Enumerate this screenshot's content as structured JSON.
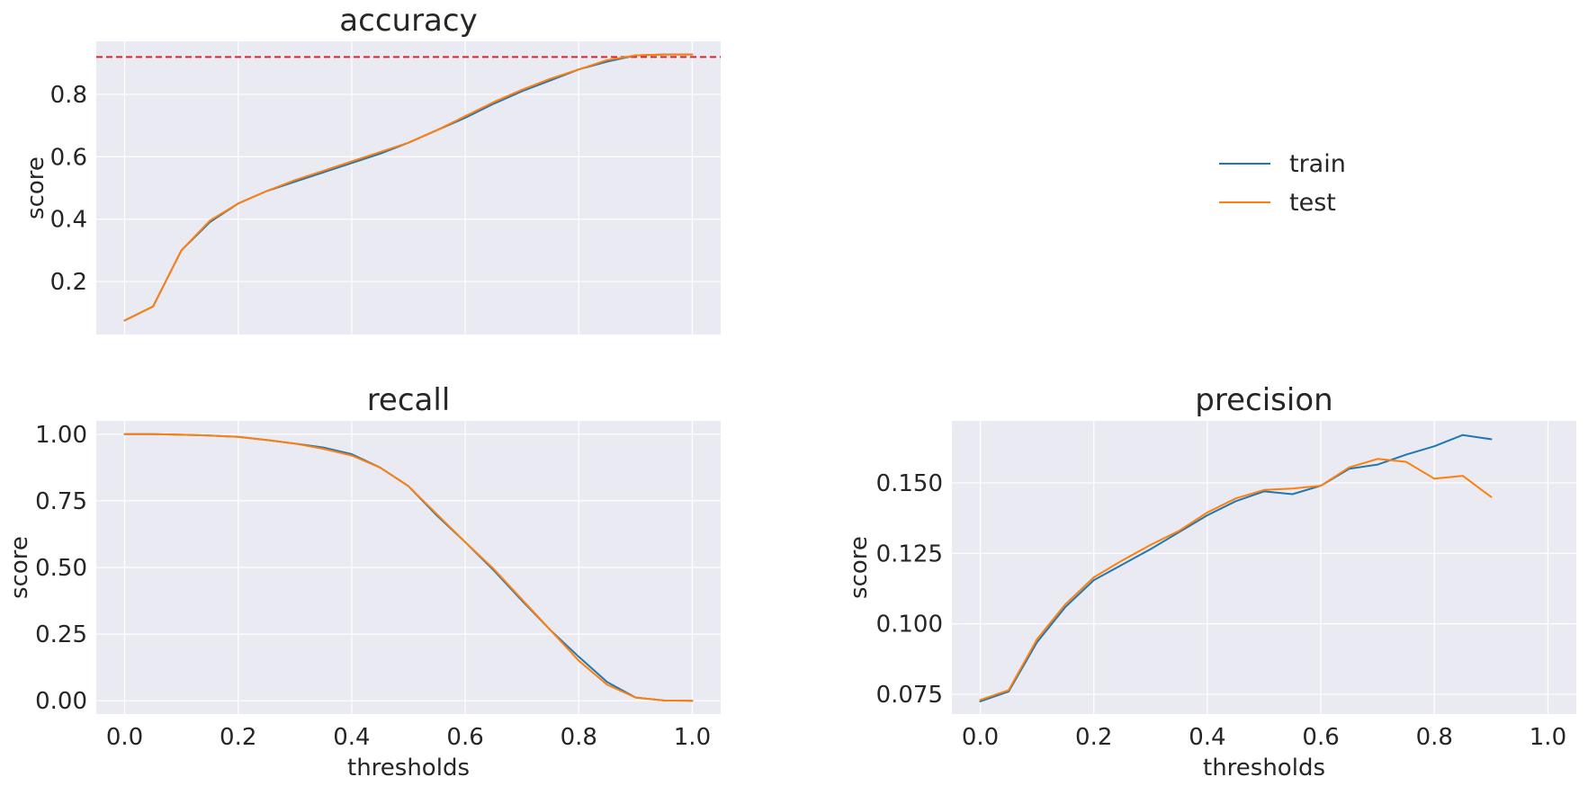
{
  "legend": {
    "entries": [
      {
        "label": "train",
        "color": "#1f77b4"
      },
      {
        "label": "test",
        "color": "#ff7f0e"
      }
    ]
  },
  "chart_data": [
    {
      "type": "line",
      "title": "accuracy",
      "xlabel": "",
      "ylabel": "score",
      "xlim": [
        -0.05,
        1.05
      ],
      "ylim": [
        0.03,
        0.97
      ],
      "xticks": [
        0.0,
        0.2,
        0.4,
        0.6,
        0.8,
        1.0
      ],
      "xtick_labels": [
        "",
        "",
        "",
        "",
        "",
        ""
      ],
      "yticks": [
        0.2,
        0.4,
        0.6,
        0.8
      ],
      "ytick_labels": [
        "0.2",
        "0.4",
        "0.6",
        "0.8"
      ],
      "grid": true,
      "reference_line": {
        "y": 0.92,
        "color": "#d62728",
        "style": "dashed"
      },
      "x": [
        0.0,
        0.05,
        0.1,
        0.15,
        0.2,
        0.25,
        0.3,
        0.35,
        0.4,
        0.45,
        0.5,
        0.55,
        0.6,
        0.65,
        0.7,
        0.75,
        0.8,
        0.85,
        0.9,
        0.95,
        1.0
      ],
      "series": [
        {
          "name": "train",
          "color": "#1f77b4",
          "values": [
            0.075,
            0.12,
            0.3,
            0.39,
            0.45,
            0.49,
            0.52,
            0.55,
            0.58,
            0.61,
            0.645,
            0.685,
            0.725,
            0.77,
            0.81,
            0.845,
            0.88,
            0.905,
            0.925,
            0.928,
            0.928
          ]
        },
        {
          "name": "test",
          "color": "#ff7f0e",
          "values": [
            0.075,
            0.12,
            0.3,
            0.395,
            0.45,
            0.49,
            0.525,
            0.555,
            0.585,
            0.615,
            0.645,
            0.685,
            0.73,
            0.775,
            0.815,
            0.85,
            0.88,
            0.91,
            0.925,
            0.928,
            0.928
          ]
        }
      ]
    },
    {
      "type": "line",
      "title": "recall",
      "xlabel": "thresholds",
      "ylabel": "score",
      "xlim": [
        -0.05,
        1.05
      ],
      "ylim": [
        -0.05,
        1.05
      ],
      "xticks": [
        0.0,
        0.2,
        0.4,
        0.6,
        0.8,
        1.0
      ],
      "xtick_labels": [
        "0.0",
        "0.2",
        "0.4",
        "0.6",
        "0.8",
        "1.0"
      ],
      "yticks": [
        0.0,
        0.25,
        0.5,
        0.75,
        1.0
      ],
      "ytick_labels": [
        "0.00",
        "0.25",
        "0.50",
        "0.75",
        "1.00"
      ],
      "grid": true,
      "x": [
        0.0,
        0.05,
        0.1,
        0.15,
        0.2,
        0.25,
        0.3,
        0.35,
        0.4,
        0.45,
        0.5,
        0.55,
        0.6,
        0.65,
        0.7,
        0.75,
        0.8,
        0.85,
        0.9,
        0.95,
        1.0
      ],
      "series": [
        {
          "name": "train",
          "color": "#1f77b4",
          "values": [
            1.0,
            1.0,
            0.998,
            0.995,
            0.99,
            0.978,
            0.965,
            0.95,
            0.925,
            0.875,
            0.805,
            0.695,
            0.595,
            0.49,
            0.375,
            0.265,
            0.165,
            0.07,
            0.012,
            0.001,
            0.0
          ]
        },
        {
          "name": "test",
          "color": "#ff7f0e",
          "values": [
            1.0,
            1.0,
            0.998,
            0.995,
            0.99,
            0.978,
            0.965,
            0.945,
            0.92,
            0.875,
            0.805,
            0.7,
            0.595,
            0.495,
            0.38,
            0.265,
            0.15,
            0.06,
            0.012,
            0.001,
            0.0
          ]
        }
      ]
    },
    {
      "type": "line",
      "title": "precision",
      "xlabel": "thresholds",
      "ylabel": "score",
      "xlim": [
        -0.05,
        1.05
      ],
      "ylim": [
        0.068,
        0.172
      ],
      "xticks": [
        0.0,
        0.2,
        0.4,
        0.6,
        0.8,
        1.0
      ],
      "xtick_labels": [
        "0.0",
        "0.2",
        "0.4",
        "0.6",
        "0.8",
        "1.0"
      ],
      "yticks": [
        0.075,
        0.1,
        0.125,
        0.15
      ],
      "ytick_labels": [
        "0.075",
        "0.100",
        "0.125",
        "0.150"
      ],
      "grid": true,
      "x": [
        0.0,
        0.05,
        0.1,
        0.15,
        0.2,
        0.25,
        0.3,
        0.35,
        0.4,
        0.45,
        0.5,
        0.55,
        0.6,
        0.65,
        0.7,
        0.75,
        0.8,
        0.85,
        0.9
      ],
      "series": [
        {
          "name": "train",
          "color": "#1f77b4",
          "values": [
            0.0725,
            0.076,
            0.0935,
            0.106,
            0.1155,
            0.121,
            0.1265,
            0.1325,
            0.1385,
            0.1435,
            0.147,
            0.146,
            0.149,
            0.155,
            0.1565,
            0.16,
            0.163,
            0.167,
            0.1655
          ]
        },
        {
          "name": "test",
          "color": "#ff7f0e",
          "values": [
            0.073,
            0.0765,
            0.0945,
            0.107,
            0.1165,
            0.1225,
            0.128,
            0.133,
            0.1395,
            0.1445,
            0.1475,
            0.148,
            0.149,
            0.1555,
            0.1585,
            0.1575,
            0.1515,
            0.1525,
            0.145
          ]
        }
      ]
    }
  ]
}
